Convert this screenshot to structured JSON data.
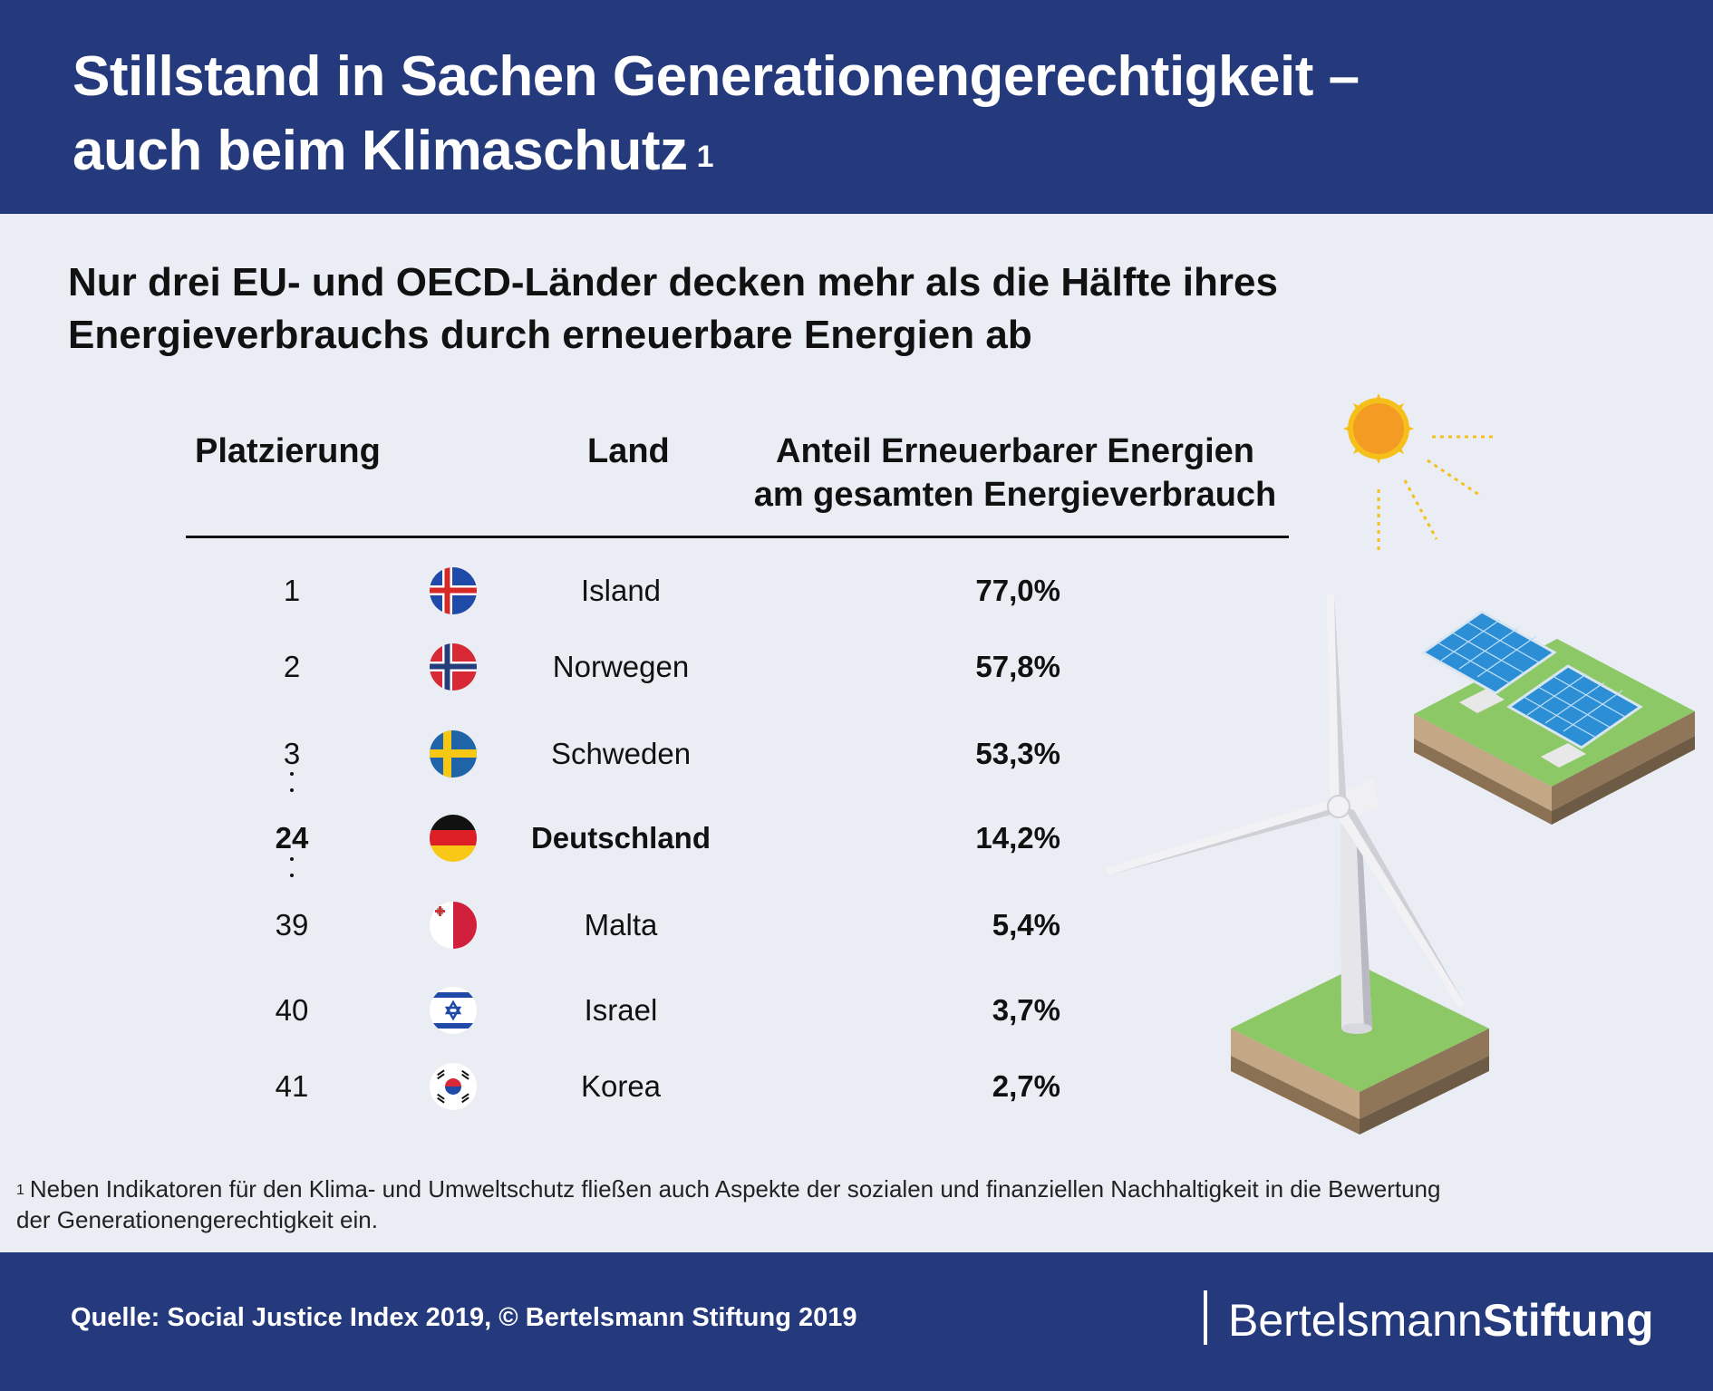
{
  "header": {
    "title_line1": "Stillstand in Sachen Generationengerechtigkeit –",
    "title_line2": "auch beim Klimaschutz",
    "title_footnote_mark": "1"
  },
  "subtitle": {
    "line1": "Nur drei EU- und OECD-Länder decken mehr als die Hälfte ihres",
    "line2": "Energieverbrauchs durch erneuerbare Energien ab"
  },
  "table": {
    "col_rank": "Platzierung",
    "col_country": "Land",
    "col_share_line1": "Anteil Erneuerbarer Energien",
    "col_share_line2": "am gesamten Energieverbrauch",
    "rows": [
      {
        "rank": "1",
        "country": "Island",
        "value": "77,0%",
        "flag": "iceland-flag-icon"
      },
      {
        "rank": "2",
        "country": "Norwegen",
        "value": "57,8%",
        "flag": "norway-flag-icon"
      },
      {
        "rank": "3",
        "country": "Schweden",
        "value": "53,3%",
        "flag": "sweden-flag-icon"
      },
      {
        "rank": "24",
        "country": "Deutschland",
        "value": "14,2%",
        "flag": "germany-flag-icon"
      },
      {
        "rank": "39",
        "country": "Malta",
        "value": "5,4%",
        "flag": "malta-flag-icon"
      },
      {
        "rank": "40",
        "country": "Israel",
        "value": "3,7%",
        "flag": "israel-flag-icon"
      },
      {
        "rank": "41",
        "country": "Korea",
        "value": "2,7%",
        "flag": "korea-flag-icon"
      }
    ]
  },
  "footnote": {
    "mark": "1",
    "line1": "Neben Indikatoren für den Klima- und Umweltschutz fließen auch Aspekte der sozialen und finanziellen Nachhaltigkeit in die Bewertung",
    "line2": "der Generationengerechtigkeit ein."
  },
  "footer": {
    "source": "Quelle: Social Justice Index 2019, © Bertelsmann Stiftung 2019",
    "logo_part1": "Bertelsmann",
    "logo_part2": "Stiftung"
  },
  "colors": {
    "header_bg": "#253a7c",
    "page_bg": "#eaeef4",
    "sun": "#f39b23",
    "grass": "#8cc866",
    "solar_panel": "#2c8fd6"
  },
  "illustration": {
    "icons": [
      "sun-icon",
      "wind-turbine-icon",
      "solar-panels-icon"
    ]
  }
}
